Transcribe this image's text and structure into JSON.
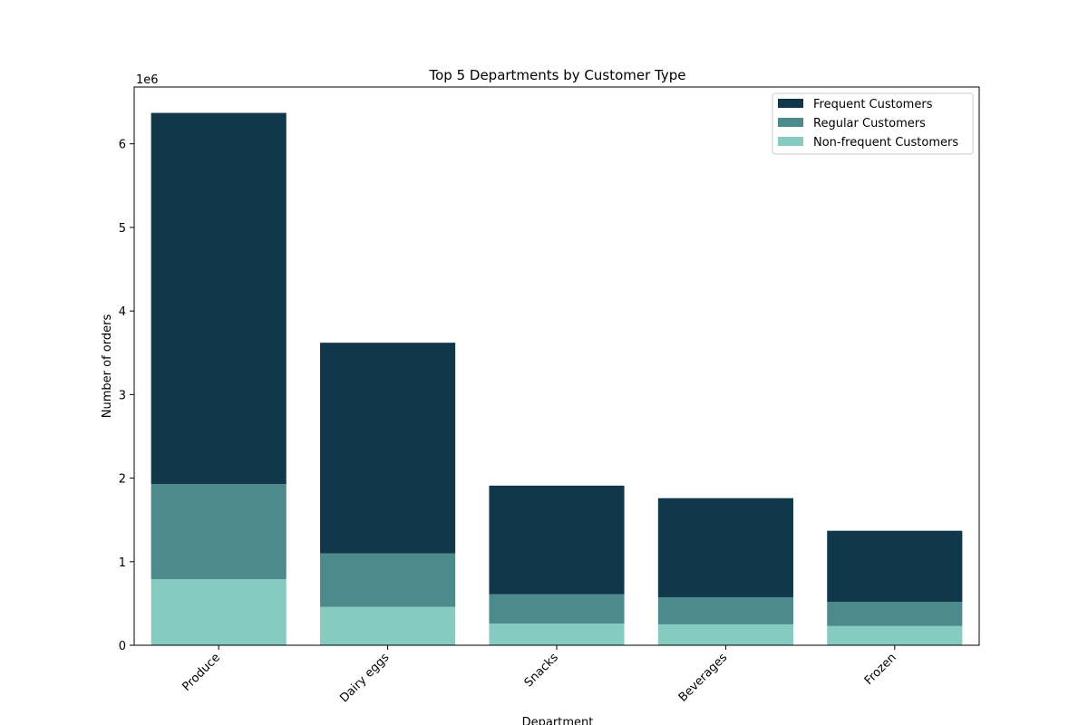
{
  "chart_data": {
    "type": "stacked-bar",
    "title": "Top 5 Departments by Customer Type",
    "x_label": "Department",
    "y_label": "Number of orders",
    "y_offset_label": "1e6",
    "categories": [
      "Produce",
      "Dairy eggs",
      "Snacks",
      "Beverages",
      "Frozen"
    ],
    "series": [
      {
        "name": "Frequent Customers",
        "color": "#10374a",
        "values": [
          4440000,
          2520000,
          1300000,
          1185000,
          850000
        ]
      },
      {
        "name": "Regular Customers",
        "color": "#4d8a8b",
        "values": [
          1140000,
          640000,
          350000,
          325000,
          290000
        ]
      },
      {
        "name": "Non-frequent Customers",
        "color": "#86cbbf",
        "values": [
          790000,
          460000,
          260000,
          250000,
          230000
        ]
      }
    ],
    "ylim": [
      0,
      6680000
    ],
    "yticks": [
      0,
      {
        "value": 1000000,
        "label": "1"
      },
      {
        "value": 2000000,
        "label": "2"
      },
      {
        "value": 3000000,
        "label": "3"
      },
      {
        "value": 4000000,
        "label": "4"
      },
      {
        "value": 5000000,
        "label": "5"
      },
      {
        "value": 6000000,
        "label": "6"
      }
    ],
    "legend": "upper-right"
  }
}
